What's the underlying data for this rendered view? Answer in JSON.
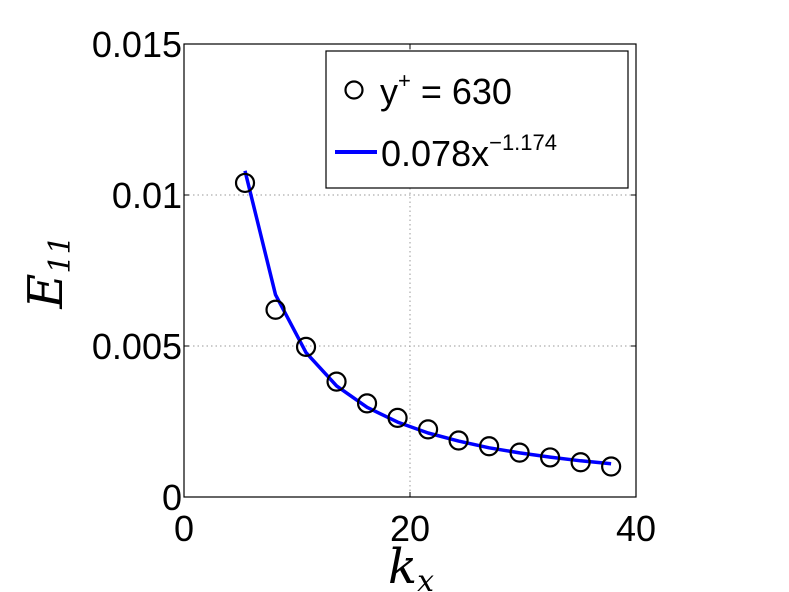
{
  "chart_data": {
    "type": "scatter",
    "xlim": [
      0,
      40
    ],
    "ylim": [
      0,
      0.015
    ],
    "x_ticks": [
      0,
      20,
      40
    ],
    "x_tick_labels": [
      "0",
      "20",
      "40"
    ],
    "y_ticks": [
      0,
      0.005,
      0.01,
      0.015
    ],
    "y_tick_labels": [
      "0",
      "0.005",
      "0.01",
      "0.015"
    ],
    "grid": true,
    "legend_placement": "top-right",
    "xlabel": {
      "main": "k",
      "sub": "x"
    },
    "ylabel": {
      "main": "E",
      "sub": "11"
    },
    "series": [
      {
        "name": "y",
        "name_sup": "+",
        "name_rest": " = 630",
        "marker": "circle",
        "color": "#000000",
        "x": [
          5.4,
          8.1,
          10.8,
          13.5,
          16.2,
          18.9,
          21.6,
          24.3,
          27.0,
          29.7,
          32.4,
          35.1,
          37.8
        ],
        "y": [
          0.0104,
          0.0062,
          0.00497,
          0.00382,
          0.0031,
          0.00262,
          0.00224,
          0.00187,
          0.00168,
          0.00147,
          0.00131,
          0.00115,
          0.00101
        ]
      },
      {
        "name": "0.078x",
        "name_sup": "−1.174",
        "name_rest": "",
        "marker": "line",
        "color": "#0000ff",
        "fit": {
          "a": 0.078,
          "b": -1.174
        },
        "x": [
          5.4,
          8.1,
          10.8,
          13.5,
          16.2,
          18.9,
          21.6,
          24.3,
          27.0,
          29.7,
          32.4,
          35.1,
          37.8
        ],
        "y": [
          0.0108,
          0.0067,
          0.00478,
          0.00368,
          0.00297,
          0.00248,
          0.00212,
          0.00185,
          0.00163,
          0.00146,
          0.00132,
          0.0012,
          0.0011
        ]
      }
    ]
  }
}
